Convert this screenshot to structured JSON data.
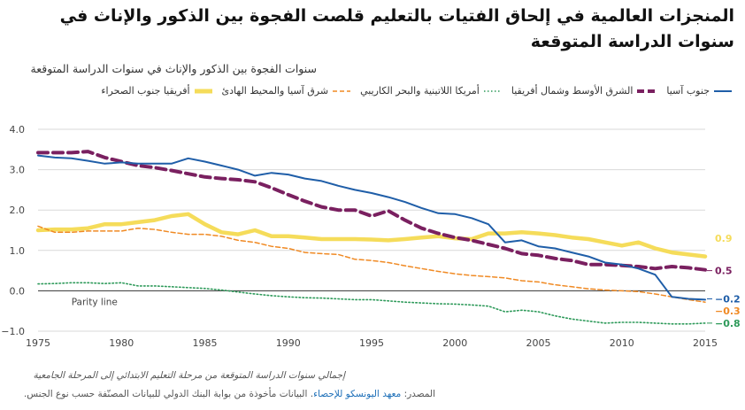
{
  "title": "المنجزات العالمية في إلحاق الفتيات بالتعليم قلصت الفجوة بين الذكور والإناث في سنوات الدراسة المتوقعة",
  "subtitle": "سنوات الفجوة بين الذكور والإناث في سنوات الدراسة المتوقعة",
  "note": "إجمالي سنوات الدراسة المتوقعة من مرحلة التعليم الابتدائي إلى المرحلة الجامعية",
  "source": {
    "prefix": "المصدر:",
    "link_text": "معهد اليونسكو للإحصاء",
    "suffix": ". البيانات مأخوذة من بوابة البنك الدولي للبيانات المصنّفة حسب نوع الجنس."
  },
  "chart_data": {
    "type": "line",
    "xlim": [
      1975,
      2015
    ],
    "ylim": [
      -1.0,
      4.0
    ],
    "x_ticks": [
      1975,
      1980,
      1985,
      1990,
      1995,
      2000,
      2005,
      2010,
      2015
    ],
    "y_ticks": [
      4.0,
      3.0,
      2.0,
      1.0,
      0.0,
      -1.0
    ],
    "y_tick_labels": [
      "4.0",
      "3.0",
      "2.0",
      "1.0",
      "0.0",
      "−1.0"
    ],
    "grid": "horizontal",
    "legend_position": "top",
    "annotation": "Parity line",
    "series": [
      {
        "name": "جنوب آسيا",
        "color": "#1f5ea8",
        "style": "solid",
        "end_label": "−0.2",
        "x": [
          1975,
          1976,
          1977,
          1978,
          1979,
          1980,
          1981,
          1982,
          1983,
          1984,
          1985,
          1986,
          1987,
          1988,
          1989,
          1990,
          1991,
          1992,
          1993,
          1994,
          1995,
          1996,
          1997,
          1998,
          1999,
          2000,
          2001,
          2002,
          2003,
          2004,
          2005,
          2006,
          2007,
          2008,
          2009,
          2010,
          2011,
          2012,
          2013,
          2014,
          2015
        ],
        "values": [
          3.35,
          3.3,
          3.28,
          3.22,
          3.15,
          3.18,
          3.15,
          3.15,
          3.15,
          3.28,
          3.2,
          3.1,
          3.0,
          2.85,
          2.92,
          2.88,
          2.78,
          2.72,
          2.6,
          2.5,
          2.42,
          2.32,
          2.2,
          2.05,
          1.92,
          1.9,
          1.8,
          1.65,
          1.2,
          1.25,
          1.1,
          1.05,
          0.95,
          0.85,
          0.7,
          0.65,
          0.55,
          0.4,
          -0.15,
          -0.2,
          -0.22
        ]
      },
      {
        "name": "الشرق الأوسط وشمال أفريقيا",
        "color": "#7a2060",
        "style": "dashed-bold",
        "end_label": "0.5",
        "x": [
          1975,
          1976,
          1977,
          1978,
          1979,
          1980,
          1981,
          1982,
          1983,
          1984,
          1985,
          1986,
          1987,
          1988,
          1989,
          1990,
          1991,
          1992,
          1993,
          1994,
          1995,
          1996,
          1997,
          1998,
          1999,
          2000,
          2001,
          2002,
          2003,
          2004,
          2005,
          2006,
          2007,
          2008,
          2009,
          2010,
          2011,
          2012,
          2013,
          2014,
          2015
        ],
        "values": [
          3.42,
          3.42,
          3.42,
          3.45,
          3.3,
          3.2,
          3.1,
          3.05,
          2.98,
          2.9,
          2.82,
          2.78,
          2.75,
          2.7,
          2.55,
          2.38,
          2.22,
          2.08,
          2.0,
          2.0,
          1.85,
          1.98,
          1.75,
          1.55,
          1.42,
          1.32,
          1.25,
          1.15,
          1.05,
          0.92,
          0.88,
          0.8,
          0.75,
          0.65,
          0.65,
          0.63,
          0.6,
          0.55,
          0.6,
          0.57,
          0.52
        ]
      },
      {
        "name": "أمريكا اللاتينية والبحر الكاريبي",
        "color": "#2e9a5a",
        "style": "dotted",
        "end_label": "−0.8",
        "x": [
          1975,
          1976,
          1977,
          1978,
          1979,
          1980,
          1981,
          1982,
          1983,
          1984,
          1985,
          1986,
          1987,
          1988,
          1989,
          1990,
          1991,
          1992,
          1993,
          1994,
          1995,
          1996,
          1997,
          1998,
          1999,
          2000,
          2001,
          2002,
          2003,
          2004,
          2005,
          2006,
          2007,
          2008,
          2009,
          2010,
          2011,
          2012,
          2013,
          2014,
          2015
        ],
        "values": [
          0.17,
          0.18,
          0.2,
          0.2,
          0.18,
          0.2,
          0.12,
          0.12,
          0.1,
          0.08,
          0.06,
          0.02,
          -0.03,
          -0.08,
          -0.12,
          -0.15,
          -0.17,
          -0.18,
          -0.2,
          -0.22,
          -0.22,
          -0.25,
          -0.28,
          -0.3,
          -0.32,
          -0.33,
          -0.35,
          -0.38,
          -0.52,
          -0.48,
          -0.52,
          -0.62,
          -0.7,
          -0.75,
          -0.8,
          -0.78,
          -0.78,
          -0.8,
          -0.82,
          -0.82,
          -0.8
        ]
      },
      {
        "name": "شرق آسيا والمحيط الهادئ",
        "color": "#f08a24",
        "style": "dashed",
        "end_label": "−0.3",
        "x": [
          1975,
          1976,
          1977,
          1978,
          1979,
          1980,
          1981,
          1982,
          1983,
          1984,
          1985,
          1986,
          1987,
          1988,
          1989,
          1990,
          1991,
          1992,
          1993,
          1994,
          1995,
          1996,
          1997,
          1998,
          1999,
          2000,
          2001,
          2002,
          2003,
          2004,
          2005,
          2006,
          2007,
          2008,
          2009,
          2010,
          2011,
          2012,
          2013,
          2014,
          2015
        ],
        "values": [
          1.6,
          1.45,
          1.45,
          1.48,
          1.48,
          1.48,
          1.55,
          1.52,
          1.45,
          1.4,
          1.4,
          1.35,
          1.25,
          1.2,
          1.1,
          1.05,
          0.95,
          0.92,
          0.9,
          0.78,
          0.75,
          0.7,
          0.62,
          0.55,
          0.48,
          0.42,
          0.38,
          0.35,
          0.32,
          0.25,
          0.22,
          0.15,
          0.1,
          0.05,
          0.02,
          0.0,
          -0.02,
          -0.08,
          -0.15,
          -0.22,
          -0.28
        ]
      },
      {
        "name": "أفريقيا جنوب الصحراء",
        "color": "#f5dc5a",
        "style": "solid-bold",
        "end_label": "0.9",
        "x": [
          1975,
          1976,
          1977,
          1978,
          1979,
          1980,
          1981,
          1982,
          1983,
          1984,
          1985,
          1986,
          1987,
          1988,
          1989,
          1990,
          1991,
          1992,
          1993,
          1994,
          1995,
          1996,
          1997,
          1998,
          1999,
          2000,
          2001,
          2002,
          2003,
          2004,
          2005,
          2006,
          2007,
          2008,
          2009,
          2010,
          2011,
          2012,
          2013,
          2014,
          2015
        ],
        "values": [
          1.5,
          1.52,
          1.52,
          1.55,
          1.65,
          1.65,
          1.7,
          1.75,
          1.85,
          1.9,
          1.65,
          1.45,
          1.4,
          1.5,
          1.35,
          1.35,
          1.32,
          1.28,
          1.28,
          1.28,
          1.27,
          1.25,
          1.28,
          1.32,
          1.35,
          1.3,
          1.28,
          1.42,
          1.42,
          1.45,
          1.42,
          1.38,
          1.32,
          1.28,
          1.2,
          1.12,
          1.2,
          1.05,
          0.95,
          0.9,
          0.85
        ]
      }
    ]
  }
}
